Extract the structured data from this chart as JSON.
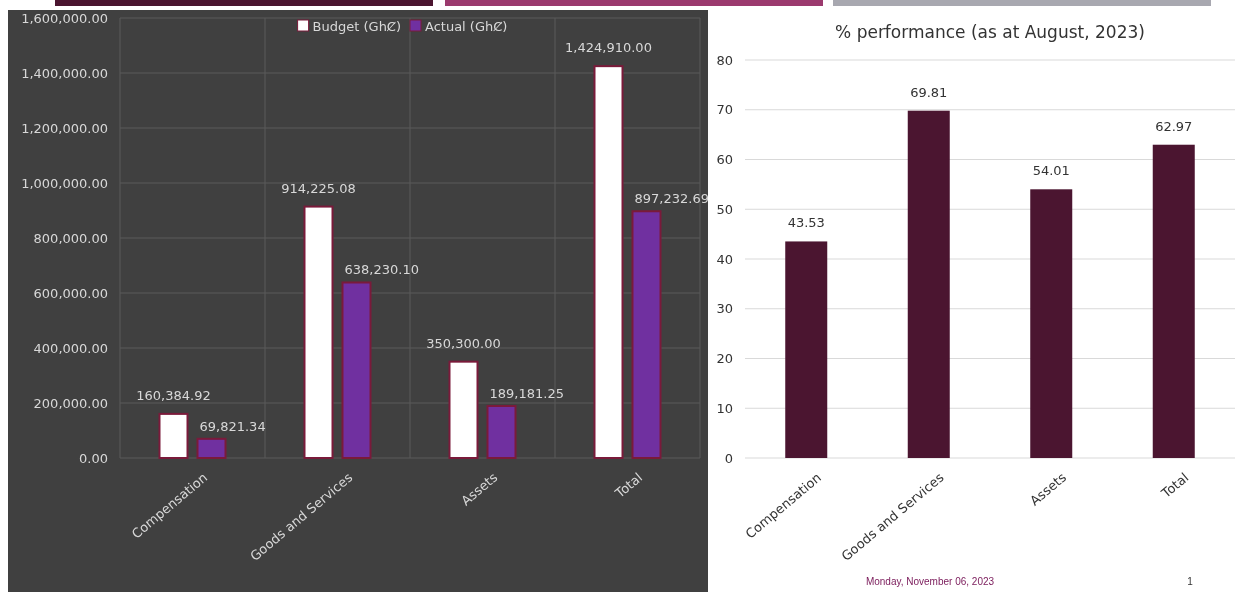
{
  "chart_data": [
    {
      "type": "bar",
      "categories": [
        "Compensation",
        "Goods and Services",
        "Assets",
        "Total"
      ],
      "series": [
        {
          "name": "Budget (GhȻ)",
          "color": "#ffffff",
          "values": [
            160384.92,
            914225.08,
            350300.0,
            1424910.0
          ],
          "value_labels": [
            "160,384.92",
            "914,225.08",
            "350,300.00",
            "1,424,910.00"
          ]
        },
        {
          "name": "Actual (GhȻ)",
          "color": "#7030a0",
          "values": [
            69821.34,
            638230.1,
            189181.25,
            897232.69
          ],
          "value_labels": [
            "69,821.34",
            "638,230.10",
            "189,181.25",
            "897,232.69"
          ]
        }
      ],
      "ylim": [
        0,
        1600000
      ],
      "yticks": [
        {
          "value": 0,
          "label": "0.00"
        },
        {
          "value": 200000,
          "label": "200,000.00"
        },
        {
          "value": 400000,
          "label": "400,000.00"
        },
        {
          "value": 600000,
          "label": "600,000.00"
        },
        {
          "value": 800000,
          "label": "800,000.00"
        },
        {
          "value": 1000000,
          "label": "1,000,000.00"
        },
        {
          "value": 1200000,
          "label": "1,200,000.00"
        },
        {
          "value": 1400000,
          "label": "1,400,000.00"
        },
        {
          "value": 1600000,
          "label": "1,600,000.00"
        }
      ],
      "grid": true,
      "legend": "top"
    },
    {
      "type": "bar",
      "title": "% performance (as at August,  2023)",
      "categories": [
        "Compensation",
        "Goods and Services",
        "Assets",
        "Total"
      ],
      "values": [
        43.53,
        69.81,
        54.01,
        62.97
      ],
      "color": "#4b1530",
      "value_labels": [
        "43.53",
        "69.81",
        "54.01",
        "62.97"
      ],
      "ylim": [
        0,
        80
      ],
      "yticks": [
        0,
        10,
        20,
        30,
        40,
        50,
        60,
        70,
        80
      ],
      "grid": "y",
      "annotations": [
        "Monday, November 06, 2023",
        "1"
      ]
    }
  ]
}
